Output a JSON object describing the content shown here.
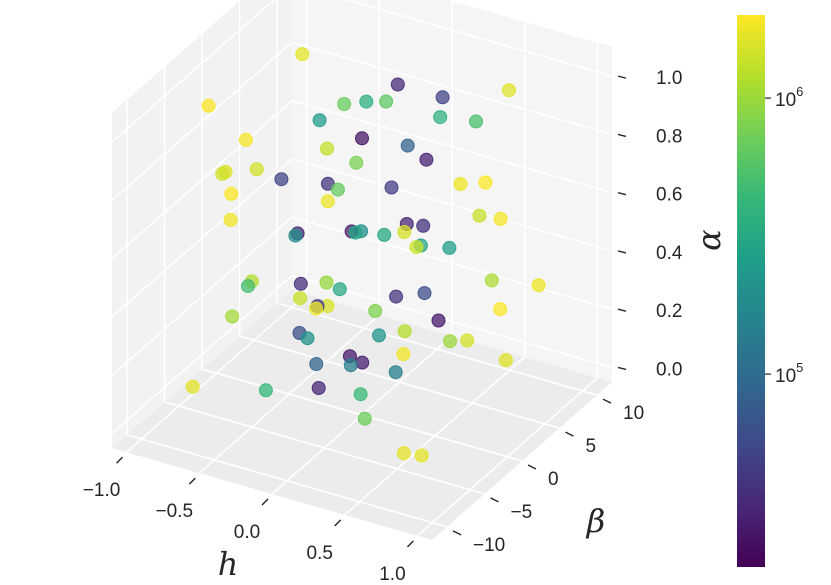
{
  "chart_data": {
    "type": "scatter",
    "title": "",
    "xlabel": "h",
    "ylabel": "β",
    "zlabel": "α",
    "xlim": [
      -1.1,
      1.1
    ],
    "ylim": [
      -12,
      12
    ],
    "zlim": [
      -0.05,
      1.1
    ],
    "x_ticks": [
      "−1.0",
      "−0.5",
      "0.0",
      "0.5",
      "1.0"
    ],
    "y_ticks": [
      "−10",
      "−5",
      "0",
      "5",
      "10"
    ],
    "z_ticks": [
      "0.0",
      "0.2",
      "0.4",
      "0.6",
      "0.8",
      "1.0"
    ],
    "grid": true,
    "colorbar": {
      "label": "",
      "scale": "log",
      "range": [
        20000,
        2000000
      ],
      "ticks": [
        {
          "base": "10",
          "exp": "5",
          "value": 100000
        },
        {
          "base": "10",
          "exp": "6",
          "value": 1000000
        }
      ],
      "colormap": "viridis",
      "colors": [
        "#440154",
        "#482878",
        "#3e4989",
        "#31688e",
        "#26828e",
        "#1f9e89",
        "#35b779",
        "#6ece58",
        "#b5de2b",
        "#fde725"
      ]
    },
    "series": [
      {
        "note_points": "point cloud: dense core near h≈0 spanning α 0–1, color increases with |h|",
        "x": [
          -0.05,
          0.02,
          0.08,
          -0.1,
          0.05,
          -0.02,
          0.1,
          -0.08,
          0.0,
          0.04,
          -0.04,
          0.12,
          -0.12,
          0.06,
          -0.06,
          0.03,
          -0.03,
          0.09,
          -0.09,
          0.01,
          0.18,
          0.22,
          0.25,
          0.2,
          0.28,
          0.3,
          0.24,
          0.26,
          0.32,
          0.35,
          -0.18,
          -0.22,
          -0.25,
          -0.2,
          -0.28,
          -0.3,
          -0.26,
          -0.32,
          -0.35,
          -0.24,
          0.45,
          0.5,
          0.55,
          0.6,
          0.65,
          0.7,
          0.75,
          0.8,
          0.85,
          0.9,
          -0.45,
          -0.5,
          -0.55,
          -0.6,
          -0.65,
          -0.7,
          -0.75,
          -0.8,
          -0.85,
          -0.9,
          0.4,
          0.48,
          0.58,
          0.68,
          0.78,
          -0.4,
          -0.48,
          -0.58,
          -0.68,
          -0.78,
          0.95,
          -0.95,
          0.15,
          -0.15,
          0.38,
          -0.38,
          0.62,
          -0.62,
          0.72,
          -0.72
        ],
        "y": [
          1,
          -2,
          3,
          -4,
          5,
          -1,
          2,
          -3,
          0,
          4,
          -5,
          6,
          -6,
          7,
          -7,
          8,
          -8,
          9,
          -9,
          10,
          1,
          -2,
          3,
          -4,
          5,
          -6,
          7,
          -8,
          9,
          -10,
          2,
          -3,
          4,
          -5,
          6,
          -7,
          8,
          -9,
          10,
          -1,
          3,
          -4,
          5,
          -6,
          7,
          -8,
          9,
          -10,
          2,
          -1,
          4,
          -5,
          6,
          -7,
          8,
          -9,
          10,
          -2,
          1,
          -3,
          -6,
          8,
          -4,
          6,
          -2,
          7,
          -8,
          3,
          -5,
          9,
          0,
          1,
          -9,
          9,
          -7,
          5,
          2,
          -2,
          -6,
          6
        ],
        "z": [
          0.1,
          0.2,
          0.3,
          0.4,
          0.5,
          0.6,
          0.7,
          0.8,
          0.9,
          1.0,
          0.15,
          0.25,
          0.35,
          0.45,
          0.55,
          0.65,
          0.75,
          0.85,
          0.95,
          0.05,
          0.1,
          0.3,
          0.5,
          0.7,
          0.9,
          0.2,
          0.4,
          0.6,
          0.8,
          1.0,
          0.05,
          0.25,
          0.45,
          0.65,
          0.85,
          0.15,
          0.35,
          0.55,
          0.75,
          0.95,
          0.2,
          0.4,
          0.6,
          0.8,
          1.0,
          0.1,
          0.3,
          0.5,
          0.7,
          0.9,
          0.25,
          0.45,
          0.65,
          0.85,
          0.05,
          0.15,
          0.35,
          0.55,
          0.75,
          0.95,
          0.5,
          0.3,
          0.7,
          0.1,
          0.9,
          0.6,
          0.4,
          0.2,
          0.8,
          0.0,
          0.45,
          0.55,
          0.35,
          0.65,
          0.15,
          0.85,
          0.25,
          0.75,
          0.05,
          0.95
        ],
        "c": [
          30000,
          28000,
          40000,
          45000,
          32000,
          29000,
          48000,
          42000,
          26000,
          35000,
          33000,
          60000,
          62000,
          38000,
          37000,
          31000,
          30500,
          50000,
          52000,
          27000,
          150000,
          220000,
          300000,
          200000,
          380000,
          450000,
          260000,
          320000,
          520000,
          650000,
          140000,
          210000,
          290000,
          190000,
          370000,
          430000,
          310000,
          500000,
          620000,
          250000,
          1000000,
          1200000,
          1350000,
          1500000,
          1600000,
          1700000,
          1800000,
          1850000,
          1900000,
          1950000,
          950000,
          1150000,
          1300000,
          1450000,
          1550000,
          1650000,
          1750000,
          1820000,
          1880000,
          1930000,
          800000,
          1100000,
          1400000,
          1620000,
          1780000,
          780000,
          1050000,
          1380000,
          1600000,
          1760000,
          1980000,
          1960000,
          90000,
          85000,
          700000,
          680000,
          1480000,
          1460000,
          1680000,
          1660000
        ]
      }
    ]
  }
}
